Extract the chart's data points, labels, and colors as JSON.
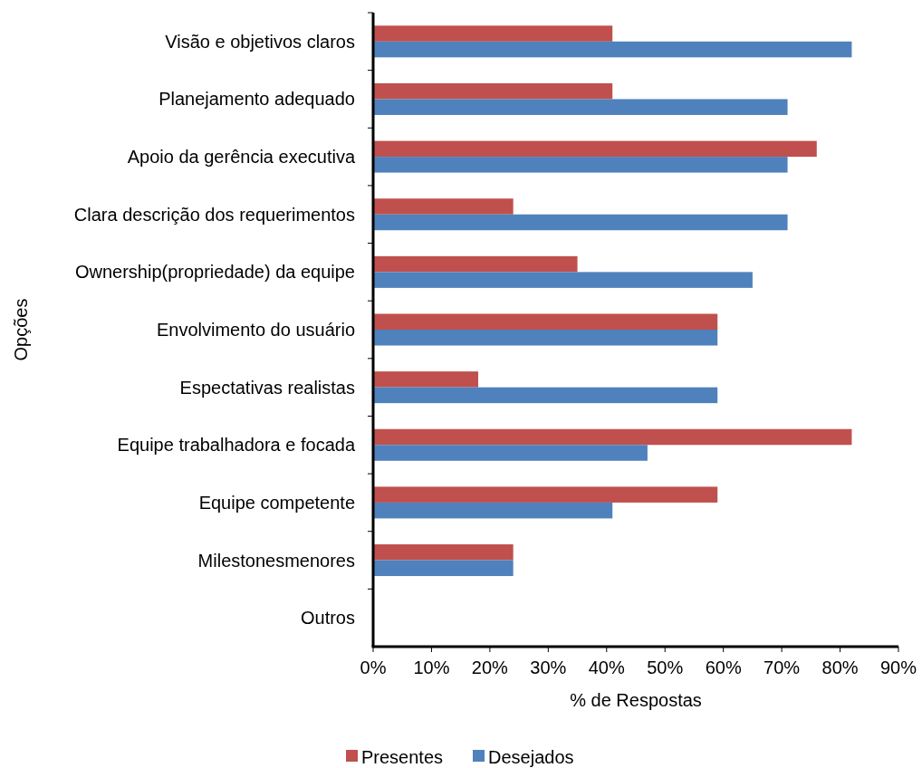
{
  "chart_data": {
    "type": "bar",
    "orientation": "horizontal",
    "xlabel": "% de Respostas",
    "ylabel": "Opções",
    "categories": [
      "Visão e objetivos claros",
      "Planejamento adequado",
      "Apoio da gerência executiva",
      "Clara descrição dos requerimentos",
      "Ownership(propriedade) da equipe",
      "Envolvimento do usuário",
      "Espectativas realistas",
      "Equipe trabalhadora e focada",
      "Equipe competente",
      "Milestonesmenores",
      "Outros"
    ],
    "series": [
      {
        "name": "Presentes",
        "color": "#c0504d",
        "values": [
          41,
          41,
          76,
          24,
          35,
          59,
          18,
          82,
          59,
          24,
          0
        ]
      },
      {
        "name": "Desejados",
        "color": "#4f81bd",
        "values": [
          82,
          71,
          71,
          71,
          65,
          59,
          59,
          47,
          41,
          24,
          0
        ]
      }
    ],
    "xlim": [
      0,
      90
    ],
    "xticks": [
      {
        "value": 0,
        "label": "0%"
      },
      {
        "value": 10,
        "label": "10%"
      },
      {
        "value": 20,
        "label": "20%"
      },
      {
        "value": 30,
        "label": "30%"
      },
      {
        "value": 40,
        "label": "40%"
      },
      {
        "value": 50,
        "label": "50%"
      },
      {
        "value": 60,
        "label": "60%"
      },
      {
        "value": 70,
        "label": "70%"
      },
      {
        "value": 80,
        "label": "80%"
      },
      {
        "value": 90,
        "label": "90%"
      }
    ],
    "legend": "bottom"
  }
}
